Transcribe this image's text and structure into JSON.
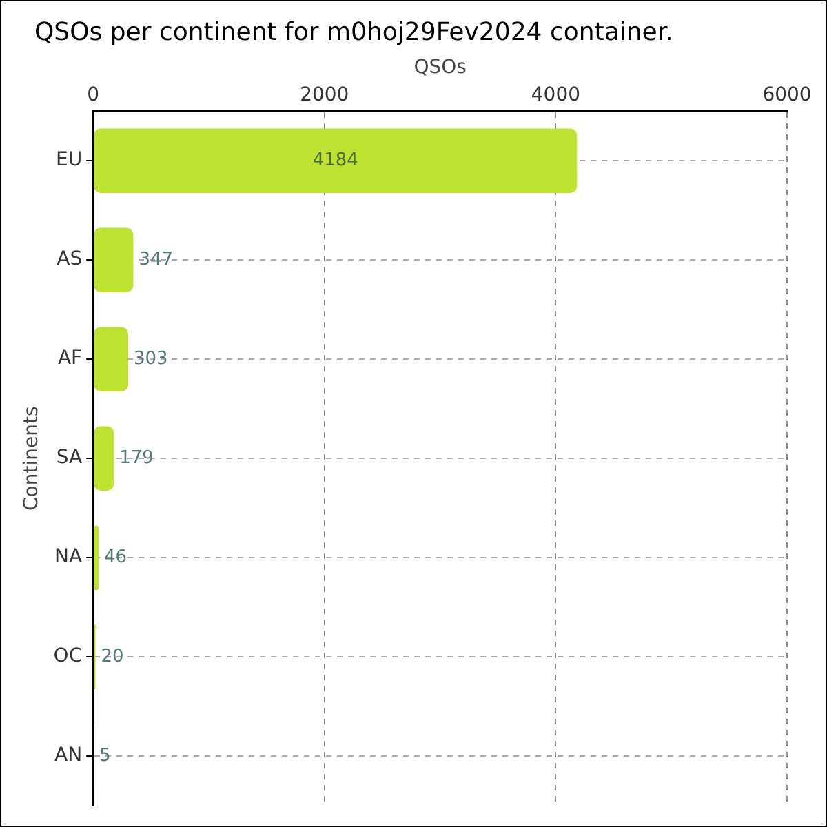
{
  "chart_data": {
    "type": "bar",
    "orientation": "horizontal",
    "title": "QSOs per continent for m0hoj29Fev2024 container.",
    "xlabel": "QSOs",
    "ylabel": "Continents",
    "categories": [
      "EU",
      "AS",
      "AF",
      "SA",
      "NA",
      "OC",
      "AN"
    ],
    "values": [
      4184,
      347,
      303,
      179,
      46,
      20,
      5
    ],
    "color": "#bde22f",
    "xlim": [
      0,
      6000
    ],
    "xticks": [
      0,
      2000,
      4000,
      6000
    ],
    "grid": true,
    "data_labels": true,
    "legend": false
  }
}
